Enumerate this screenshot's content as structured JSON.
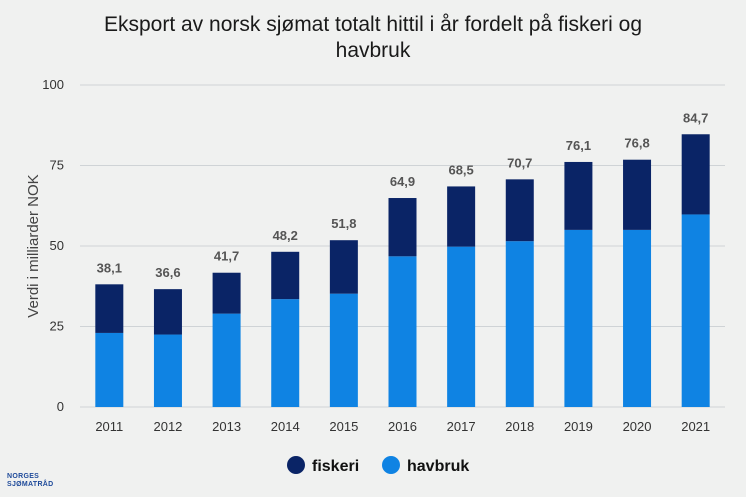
{
  "chart_data": {
    "type": "bar",
    "stacked": true,
    "title_line1": "Eksport av norsk sjømat totalt hittil i år fordelt på fiskeri og",
    "title_line2": "havbruk",
    "ylabel": "Verdi i milliarder NOK",
    "xlabel": "",
    "ylim": [
      0,
      100
    ],
    "yticks": [
      0,
      25,
      50,
      75,
      100
    ],
    "grid": true,
    "legend_position": "bottom",
    "categories": [
      "2011",
      "2012",
      "2013",
      "2014",
      "2015",
      "2016",
      "2017",
      "2018",
      "2019",
      "2020",
      "2021"
    ],
    "series": [
      {
        "name": "havbruk",
        "color": "#0f83e3",
        "values": [
          23.0,
          22.5,
          29.0,
          33.5,
          35.2,
          46.8,
          49.8,
          51.5,
          55.0,
          55.0,
          59.8
        ]
      },
      {
        "name": "fiskeri",
        "color": "#0a2466",
        "values": [
          15.1,
          14.1,
          12.7,
          14.7,
          16.6,
          18.1,
          18.7,
          19.2,
          21.1,
          21.8,
          24.9
        ]
      }
    ],
    "totals": [
      38.1,
      36.6,
      41.7,
      48.2,
      51.8,
      64.9,
      68.5,
      70.7,
      76.1,
      76.8,
      84.7
    ],
    "total_labels": [
      "38,1",
      "36,6",
      "41,7",
      "48,2",
      "51,8",
      "64,9",
      "68,5",
      "70,7",
      "76,1",
      "76,8",
      "84,7"
    ],
    "legend": [
      {
        "label": "fiskeri",
        "color": "#0a2466"
      },
      {
        "label": "havbruk",
        "color": "#0f83e3"
      }
    ],
    "gridline_color": "#cfd3d6"
  },
  "logo": {
    "line1": "NORGES",
    "line2": "SJØMATRÅD"
  }
}
